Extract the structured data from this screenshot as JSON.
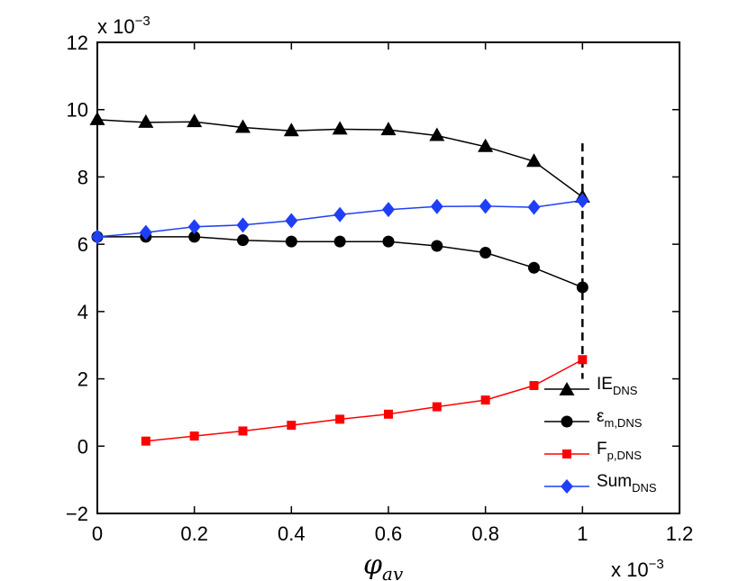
{
  "chart_data": {
    "type": "line",
    "xlabel_main": "φ",
    "xlabel_sub": "av",
    "xlim": [
      0,
      1.2
    ],
    "ylim": [
      -2,
      12
    ],
    "xticks": [
      "0",
      "0.2",
      "0.4",
      "0.6",
      "0.8",
      "1",
      "1.2"
    ],
    "yticks": [
      "−2",
      "0",
      "2",
      "4",
      "6",
      "8",
      "10",
      "12"
    ],
    "x_scale_text": "x 10",
    "x_scale_exp": "−3",
    "y_scale_text": "x 10",
    "y_scale_exp": "−3",
    "grid": false,
    "legend_position": "bottom-right",
    "vertical_reference_line": {
      "x": 1.0,
      "y_range": [
        2,
        9
      ],
      "style": "dashed"
    },
    "series": [
      {
        "name": "IE",
        "name_sub": "DNS",
        "color": "#000000",
        "marker": "triangle",
        "x": [
          0,
          0.1,
          0.2,
          0.3,
          0.4,
          0.5,
          0.6,
          0.7,
          0.8,
          0.9,
          1.0
        ],
        "values": [
          9.7,
          9.62,
          9.64,
          9.47,
          9.37,
          9.42,
          9.4,
          9.23,
          8.9,
          8.46,
          7.4
        ]
      },
      {
        "name": "ε",
        "name_sub": "m,DNS",
        "color": "#000000",
        "marker": "circle",
        "x": [
          0,
          0.1,
          0.2,
          0.3,
          0.4,
          0.5,
          0.6,
          0.7,
          0.8,
          0.9,
          1.0
        ],
        "values": [
          6.22,
          6.22,
          6.22,
          6.12,
          6.08,
          6.08,
          6.08,
          5.95,
          5.75,
          5.3,
          4.72
        ]
      },
      {
        "name": "F",
        "name_sub": "p,DNS",
        "color": "#ff0000",
        "marker": "square",
        "x": [
          0.1,
          0.2,
          0.3,
          0.4,
          0.5,
          0.6,
          0.7,
          0.8,
          0.9,
          1.0
        ],
        "values": [
          0.15,
          0.3,
          0.45,
          0.62,
          0.8,
          0.95,
          1.17,
          1.37,
          1.8,
          2.57
        ]
      },
      {
        "name": "Sum",
        "name_sub": "DNS",
        "color": "#1f3ff5",
        "marker": "diamond",
        "x": [
          0,
          0.1,
          0.2,
          0.3,
          0.4,
          0.5,
          0.6,
          0.7,
          0.8,
          0.9,
          1.0
        ],
        "values": [
          6.22,
          6.35,
          6.52,
          6.57,
          6.7,
          6.88,
          7.03,
          7.12,
          7.13,
          7.1,
          7.3
        ]
      }
    ]
  }
}
